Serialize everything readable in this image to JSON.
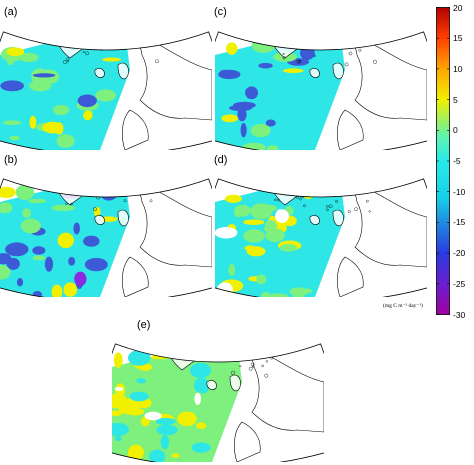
{
  "panels": [
    {
      "id": "a",
      "label": "(a)"
    },
    {
      "id": "b",
      "label": "(b)"
    },
    {
      "id": "c",
      "label": "(c)"
    },
    {
      "id": "d",
      "label": "(d)"
    },
    {
      "id": "e",
      "label": "(e)"
    }
  ],
  "colorbar": {
    "ticks": [
      "20",
      "15",
      "10",
      "5",
      "0",
      "-5",
      "-10",
      "-15",
      "-20",
      "-25",
      "-30"
    ],
    "unit": "(mg C m⁻² day⁻¹)",
    "range": [
      -30,
      20
    ],
    "colors": [
      "#9b009b",
      "#2a2ae0",
      "#14d6e6",
      "#1ae8e8",
      "#7fffc0",
      "#ffff00",
      "#ff9900",
      "#cc0000"
    ]
  },
  "colors": {
    "land_line": "#000000",
    "ocean_cyan": "#2ee6e6",
    "green": "#7df07d",
    "yellow": "#f0f000",
    "blue": "#3c5ad6",
    "purple": "#8a2be2"
  }
}
